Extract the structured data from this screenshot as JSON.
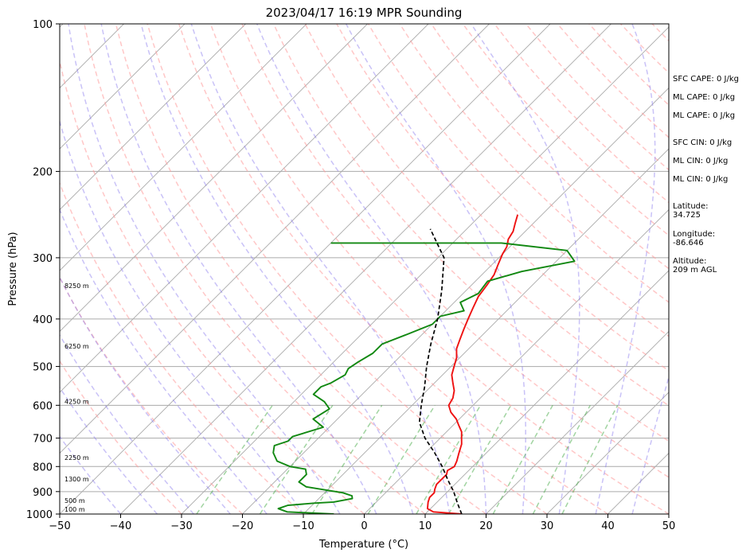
{
  "chart_data": {
    "type": "line",
    "title": "2023/04/17 16:19 MPR Sounding",
    "xlabel": "Temperature (°C)",
    "ylabel": "Pressure (hPa)",
    "xlim": [
      -50,
      50
    ],
    "ylim": [
      1000,
      100
    ],
    "y_scale": "log",
    "x_ticks": [
      "−50",
      "−40",
      "−30",
      "−20",
      "−10",
      "0",
      "10",
      "20",
      "30",
      "40",
      "50"
    ],
    "y_ticks": [
      "1000",
      "900",
      "800",
      "700",
      "600",
      "500",
      "400",
      "300",
      "200",
      "100"
    ],
    "grid": true,
    "series": [
      {
        "color": "#ee1111",
        "points": [
          [
            16,
            1000
          ],
          [
            11,
            990
          ],
          [
            9.5,
            975
          ],
          [
            9,
            960
          ],
          [
            8.5,
            945
          ],
          [
            8,
            925
          ],
          [
            8,
            905
          ],
          [
            7.5,
            890
          ],
          [
            7,
            870
          ],
          [
            7,
            850
          ],
          [
            7,
            830
          ],
          [
            6.5,
            815
          ],
          [
            7,
            800
          ],
          [
            6.5,
            780
          ],
          [
            5.5,
            750
          ],
          [
            4.5,
            720
          ],
          [
            3.5,
            700
          ],
          [
            2.5,
            680
          ],
          [
            1,
            660
          ],
          [
            -0.5,
            640
          ],
          [
            -2.5,
            620
          ],
          [
            -4,
            600
          ],
          [
            -4.5,
            580
          ],
          [
            -5.5,
            560
          ],
          [
            -7,
            540
          ],
          [
            -8.5,
            520
          ],
          [
            -9.5,
            500
          ],
          [
            -10.5,
            480
          ],
          [
            -12,
            460
          ],
          [
            -13,
            440
          ],
          [
            -14,
            420
          ],
          [
            -15,
            400
          ],
          [
            -16,
            380
          ],
          [
            -17,
            360
          ],
          [
            -17.5,
            340
          ],
          [
            -18,
            325
          ],
          [
            -19,
            310
          ],
          [
            -20,
            295
          ],
          [
            -20.5,
            285
          ],
          [
            -21.5,
            275
          ],
          [
            -22,
            265
          ],
          [
            -23,
            255
          ],
          [
            -24,
            245
          ]
        ]
      },
      {
        "color": "#118811",
        "points": [
          [
            -5,
            1000
          ],
          [
            -13,
            990
          ],
          [
            -15,
            975
          ],
          [
            -14,
            960
          ],
          [
            -10,
            950
          ],
          [
            -7,
            945
          ],
          [
            -4.5,
            930
          ],
          [
            -5,
            918
          ],
          [
            -7,
            905
          ],
          [
            -14,
            880
          ],
          [
            -16,
            860
          ],
          [
            -16,
            830
          ],
          [
            -17,
            810
          ],
          [
            -20,
            800
          ],
          [
            -23,
            780
          ],
          [
            -25,
            750
          ],
          [
            -26,
            725
          ],
          [
            -24.5,
            710
          ],
          [
            -24.5,
            695
          ],
          [
            -21,
            665
          ],
          [
            -24,
            640
          ],
          [
            -23,
            610
          ],
          [
            -25,
            590
          ],
          [
            -28,
            570
          ],
          [
            -28,
            550
          ],
          [
            -27,
            540
          ],
          [
            -26,
            520
          ],
          [
            -26.5,
            505
          ],
          [
            -26,
            490
          ],
          [
            -25,
            470
          ],
          [
            -25,
            450
          ],
          [
            -22.5,
            430
          ],
          [
            -20,
            410
          ],
          [
            -20,
            395
          ],
          [
            -17,
            385
          ],
          [
            -19,
            370
          ],
          [
            -17.5,
            355
          ],
          [
            -18,
            335
          ],
          [
            -14,
            320
          ],
          [
            -7,
            305
          ],
          [
            -10,
            290
          ],
          [
            -22,
            280
          ],
          [
            -50,
            280
          ]
        ]
      },
      {
        "color": "#000000",
        "dashed": true,
        "points": [
          [
            16,
            1000
          ],
          [
            13.5,
            950
          ],
          [
            11,
            900
          ],
          [
            8,
            850
          ],
          [
            5,
            800
          ],
          [
            1.5,
            750
          ],
          [
            -2.5,
            700
          ],
          [
            -6,
            650
          ],
          [
            -8.5,
            600
          ],
          [
            -11,
            550
          ],
          [
            -14,
            500
          ],
          [
            -17,
            450
          ],
          [
            -20,
            400
          ],
          [
            -24,
            350
          ],
          [
            -29,
            300
          ],
          [
            -36,
            262
          ]
        ]
      }
    ],
    "height_labels": [
      {
        "p": 1000,
        "text": "100 m"
      },
      {
        "p": 960,
        "text": "500 m"
      },
      {
        "p": 867,
        "text": "1300 m"
      },
      {
        "p": 785,
        "text": "2250 m"
      },
      {
        "p": 603,
        "text": "4250 m"
      },
      {
        "p": 465,
        "text": "6250 m"
      },
      {
        "p": 350,
        "text": "8250 m"
      }
    ],
    "annotations": [
      "SFC CAPE: 0 J/kg",
      "ML CAPE: 0 J/kg",
      "ML CAPE: 0 J/kg",
      "SFC CIN: 0 J/kg",
      "ML CIN: 0 J/kg",
      "ML CIN: 0 J/kg",
      "Latitude:\n34.725",
      "Longitude:\n-86.646",
      "Altitude:\n209 m AGL"
    ]
  }
}
